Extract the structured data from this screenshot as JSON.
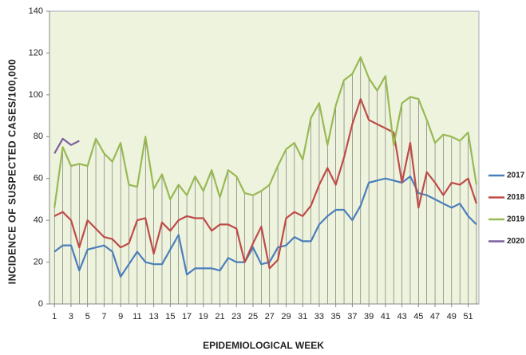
{
  "chart_data": {
    "type": "line",
    "y_label": "INCIDENCE OF SUSPECTED CASES/100,000",
    "x_label": "EPIDEMIOLOGICAL WEEK",
    "x": [
      1,
      2,
      3,
      4,
      5,
      6,
      7,
      8,
      9,
      10,
      11,
      12,
      13,
      14,
      15,
      16,
      17,
      18,
      19,
      20,
      21,
      22,
      23,
      24,
      25,
      26,
      27,
      28,
      29,
      30,
      31,
      32,
      33,
      34,
      35,
      36,
      37,
      38,
      39,
      40,
      41,
      42,
      43,
      44,
      45,
      46,
      47,
      48,
      49,
      50,
      51,
      52
    ],
    "xlim": [
      0.4,
      52.3
    ],
    "xticks": [
      1,
      3,
      5,
      7,
      9,
      11,
      13,
      15,
      17,
      19,
      21,
      23,
      25,
      27,
      29,
      31,
      33,
      35,
      37,
      39,
      41,
      43,
      45,
      47,
      49,
      51
    ],
    "ylim": [
      0,
      140
    ],
    "yticks": [
      0,
      20,
      40,
      60,
      80,
      100,
      120,
      140
    ],
    "grid": false,
    "legend": "right",
    "series": [
      {
        "name": "2017",
        "color": "#4a7ebb",
        "values": [
          25,
          28,
          28,
          16,
          26,
          27,
          28,
          25,
          13,
          19,
          25,
          20,
          19,
          19,
          26,
          33,
          14,
          17,
          17,
          17,
          16,
          22,
          20,
          20,
          27,
          19,
          20,
          27,
          28,
          32,
          30,
          30,
          38,
          42,
          45,
          45,
          40,
          47,
          58,
          59,
          60,
          59,
          58,
          61,
          53,
          52,
          50,
          48,
          46,
          48,
          42,
          38
        ]
      },
      {
        "name": "2018",
        "color": "#be4b48",
        "values": [
          42,
          44,
          40,
          27,
          40,
          36,
          32,
          31,
          27,
          29,
          40,
          41,
          24,
          39,
          35,
          40,
          42,
          41,
          41,
          35,
          38,
          38,
          36,
          20,
          29,
          37,
          17,
          21,
          41,
          44,
          42,
          47,
          57,
          65,
          57,
          70,
          86,
          98,
          88,
          86,
          84,
          82,
          58,
          77,
          46,
          63,
          58,
          52,
          58,
          57,
          60,
          48
        ]
      },
      {
        "name": "2019",
        "color": "#98b954",
        "drop_lines": true,
        "values": [
          46,
          75,
          66,
          67,
          66,
          79,
          72,
          68,
          77,
          57,
          56,
          80,
          55,
          62,
          50,
          57,
          52,
          61,
          54,
          64,
          51,
          64,
          61,
          53,
          52,
          54,
          57,
          66,
          74,
          77,
          69,
          89,
          96,
          76,
          95,
          107,
          110,
          118,
          108,
          102,
          109,
          76,
          96,
          99,
          98,
          88,
          77,
          81,
          80,
          78,
          82,
          57
        ]
      },
      {
        "name": "2020",
        "color": "#7d60a0",
        "values": [
          72,
          79,
          76,
          78,
          null,
          null,
          null,
          null,
          null,
          null,
          null,
          null,
          null,
          null,
          null,
          null,
          null,
          null,
          null,
          null,
          null,
          null,
          null,
          null,
          null,
          null,
          null,
          null,
          null,
          null,
          null,
          null,
          null,
          null,
          null,
          null,
          null,
          null,
          null,
          null,
          null,
          null,
          null,
          null,
          null,
          null,
          null,
          null,
          null,
          null,
          null,
          null
        ]
      }
    ]
  }
}
